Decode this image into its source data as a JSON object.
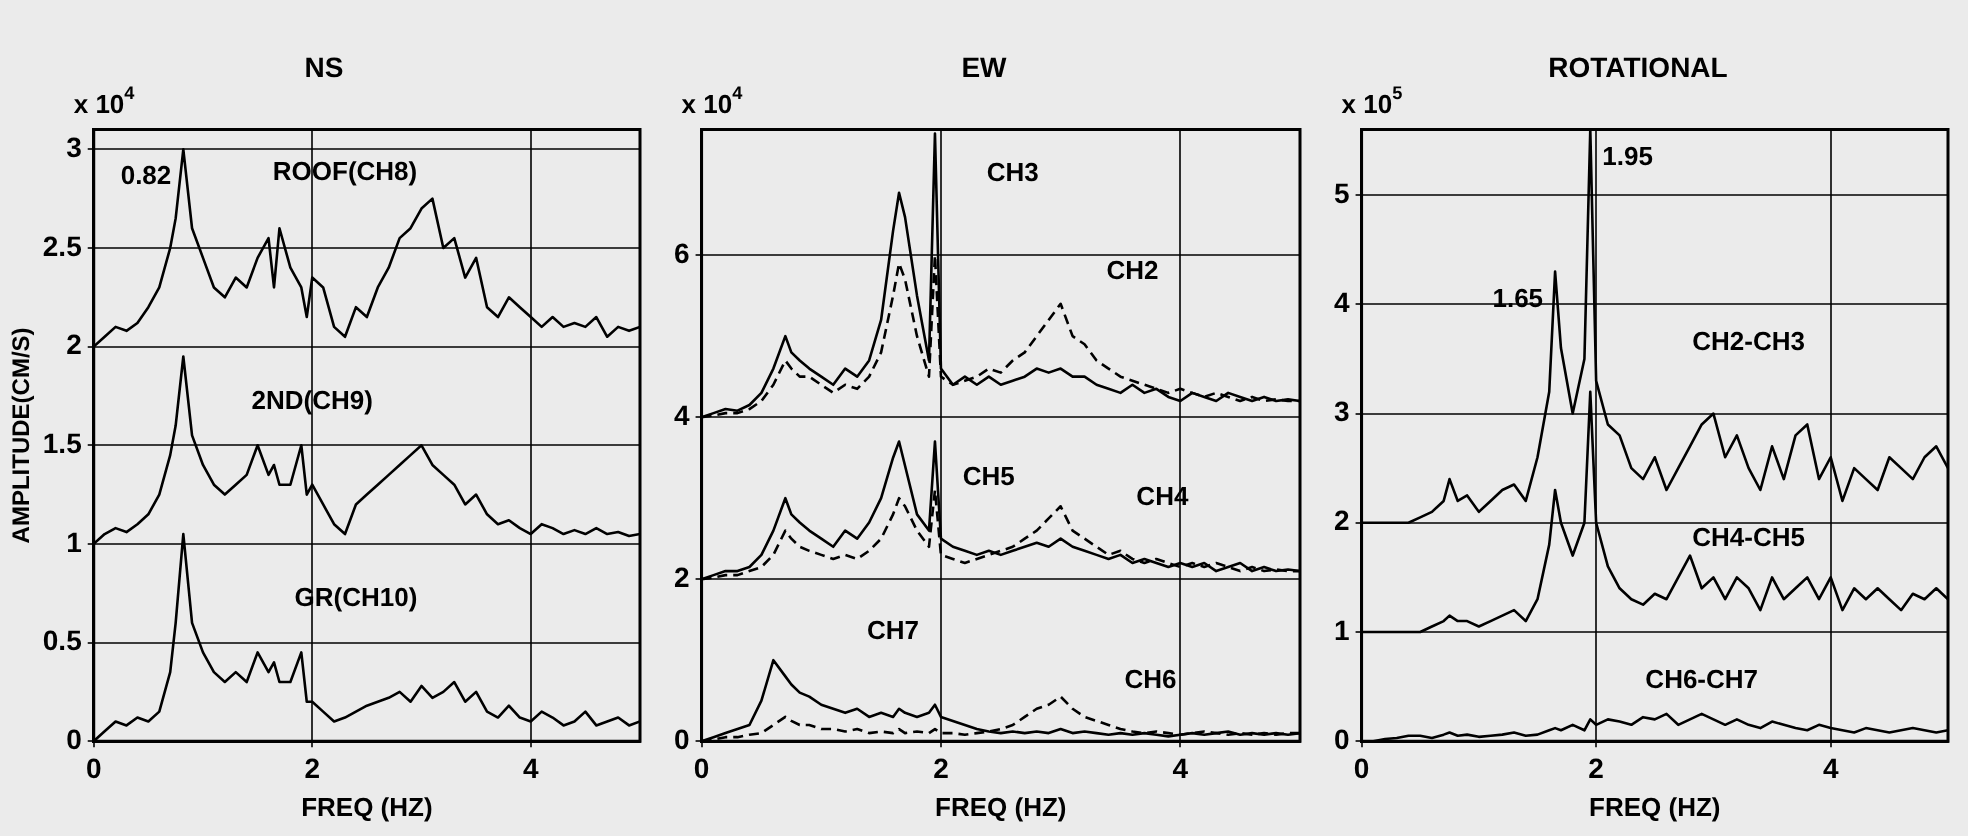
{
  "chart_data": [
    {
      "type": "line",
      "title": "NS",
      "xlabel": "FREQ (HZ)",
      "ylabel": "AMPLITUDE(CM/S)",
      "xlim": [
        0,
        5
      ],
      "xticks": [
        0,
        2,
        4
      ],
      "ylim": [
        0,
        3.1
      ],
      "yticks": [
        0,
        0.5,
        1,
        1.5,
        2,
        2.5,
        3
      ],
      "grid": true,
      "x": [
        0,
        0.1,
        0.2,
        0.3,
        0.4,
        0.5,
        0.6,
        0.7,
        0.75,
        0.82,
        0.9,
        1.0,
        1.1,
        1.2,
        1.3,
        1.4,
        1.5,
        1.6,
        1.65,
        1.7,
        1.8,
        1.9,
        1.95,
        2.0,
        2.1,
        2.2,
        2.3,
        2.4,
        2.5,
        2.6,
        2.7,
        2.8,
        2.9,
        3.0,
        3.1,
        3.2,
        3.3,
        3.4,
        3.5,
        3.6,
        3.7,
        3.8,
        3.9,
        4.0,
        4.1,
        4.2,
        4.3,
        4.4,
        4.5,
        4.6,
        4.7,
        4.8,
        4.9,
        5.0
      ],
      "series": [
        {
          "name": "ROOF(CH8)",
          "color": "#000000",
          "values": [
            2.0,
            2.05,
            2.1,
            2.08,
            2.12,
            2.2,
            2.3,
            2.5,
            2.65,
            3.0,
            2.6,
            2.45,
            2.3,
            2.25,
            2.35,
            2.3,
            2.45,
            2.55,
            2.3,
            2.6,
            2.4,
            2.3,
            2.15,
            2.35,
            2.3,
            2.1,
            2.05,
            2.2,
            2.15,
            2.3,
            2.4,
            2.55,
            2.6,
            2.7,
            2.75,
            2.5,
            2.55,
            2.35,
            2.45,
            2.2,
            2.15,
            2.25,
            2.2,
            2.15,
            2.1,
            2.15,
            2.1,
            2.12,
            2.1,
            2.15,
            2.05,
            2.1,
            2.08,
            2.1
          ]
        },
        {
          "name": "2ND(CH9)",
          "color": "#000000",
          "values": [
            1.0,
            1.05,
            1.08,
            1.06,
            1.1,
            1.15,
            1.25,
            1.45,
            1.6,
            1.95,
            1.55,
            1.4,
            1.3,
            1.25,
            1.3,
            1.35,
            1.5,
            1.35,
            1.4,
            1.3,
            1.3,
            1.5,
            1.25,
            1.3,
            1.2,
            1.1,
            1.05,
            1.2,
            1.25,
            1.3,
            1.35,
            1.4,
            1.45,
            1.5,
            1.4,
            1.35,
            1.3,
            1.2,
            1.25,
            1.15,
            1.1,
            1.12,
            1.08,
            1.05,
            1.1,
            1.08,
            1.05,
            1.07,
            1.05,
            1.08,
            1.05,
            1.06,
            1.04,
            1.05
          ]
        },
        {
          "name": "GR(CH10)",
          "color": "#000000",
          "values": [
            0.0,
            0.05,
            0.1,
            0.08,
            0.12,
            0.1,
            0.15,
            0.35,
            0.6,
            1.05,
            0.6,
            0.45,
            0.35,
            0.3,
            0.35,
            0.3,
            0.45,
            0.35,
            0.4,
            0.3,
            0.3,
            0.45,
            0.2,
            0.2,
            0.15,
            0.1,
            0.12,
            0.15,
            0.18,
            0.2,
            0.22,
            0.25,
            0.2,
            0.28,
            0.22,
            0.25,
            0.3,
            0.2,
            0.25,
            0.15,
            0.12,
            0.18,
            0.12,
            0.1,
            0.15,
            0.12,
            0.08,
            0.1,
            0.15,
            0.08,
            0.1,
            0.12,
            0.08,
            0.1
          ]
        }
      ],
      "annotations": [
        "x 10$^{4}$",
        {
          "text": "0.82",
          "x": 0.82,
          "y": 3.0
        }
      ]
    },
    {
      "type": "line",
      "title": "EW",
      "xlabel": "FREQ (HZ)",
      "xlim": [
        0,
        5
      ],
      "xticks": [
        0,
        2,
        4
      ],
      "ylim": [
        0,
        7.55
      ],
      "yticks": [
        0,
        2,
        4,
        6
      ],
      "grid": true,
      "x": [
        0,
        0.1,
        0.2,
        0.3,
        0.4,
        0.5,
        0.6,
        0.7,
        0.75,
        0.82,
        0.9,
        1.0,
        1.1,
        1.2,
        1.3,
        1.4,
        1.5,
        1.6,
        1.65,
        1.7,
        1.8,
        1.9,
        1.95,
        2.0,
        2.1,
        2.2,
        2.3,
        2.4,
        2.5,
        2.6,
        2.7,
        2.8,
        2.9,
        3.0,
        3.1,
        3.2,
        3.3,
        3.4,
        3.5,
        3.6,
        3.7,
        3.8,
        3.9,
        4.0,
        4.1,
        4.2,
        4.3,
        4.4,
        4.5,
        4.6,
        4.7,
        4.8,
        4.9,
        5.0
      ],
      "series": [
        {
          "name": "CH3",
          "color": "#000000",
          "values": [
            4.0,
            4.05,
            4.1,
            4.08,
            4.15,
            4.3,
            4.6,
            5.0,
            4.8,
            4.7,
            4.6,
            4.5,
            4.4,
            4.6,
            4.5,
            4.7,
            5.2,
            6.3,
            6.77,
            6.47,
            5.5,
            4.7,
            7.5,
            4.6,
            4.4,
            4.5,
            4.4,
            4.5,
            4.4,
            4.45,
            4.5,
            4.6,
            4.55,
            4.6,
            4.5,
            4.5,
            4.4,
            4.35,
            4.3,
            4.4,
            4.3,
            4.35,
            4.25,
            4.2,
            4.3,
            4.25,
            4.2,
            4.3,
            4.25,
            4.2,
            4.25,
            4.2,
            4.22,
            4.2
          ]
        },
        {
          "name": "CH2",
          "color": "#000000",
          "line_style": "dashed",
          "values": [
            4.0,
            4.02,
            4.05,
            4.05,
            4.1,
            4.2,
            4.4,
            4.7,
            4.6,
            4.5,
            4.5,
            4.4,
            4.3,
            4.4,
            4.35,
            4.5,
            4.8,
            5.5,
            5.9,
            5.7,
            5.0,
            4.5,
            6.0,
            4.5,
            4.4,
            4.45,
            4.5,
            4.6,
            4.55,
            4.7,
            4.8,
            5.0,
            5.2,
            5.4,
            5.0,
            4.9,
            4.7,
            4.6,
            4.5,
            4.45,
            4.4,
            4.35,
            4.3,
            4.35,
            4.3,
            4.25,
            4.3,
            4.25,
            4.2,
            4.25,
            4.2,
            4.22,
            4.2,
            4.2
          ]
        },
        {
          "name": "CH5",
          "color": "#000000",
          "values": [
            2.0,
            2.05,
            2.1,
            2.1,
            2.15,
            2.3,
            2.6,
            3.0,
            2.8,
            2.7,
            2.6,
            2.5,
            2.4,
            2.6,
            2.5,
            2.7,
            3.0,
            3.5,
            3.7,
            3.4,
            2.8,
            2.6,
            3.7,
            2.5,
            2.4,
            2.35,
            2.3,
            2.35,
            2.3,
            2.35,
            2.4,
            2.45,
            2.4,
            2.5,
            2.4,
            2.35,
            2.3,
            2.25,
            2.3,
            2.2,
            2.25,
            2.2,
            2.15,
            2.2,
            2.15,
            2.2,
            2.1,
            2.15,
            2.2,
            2.1,
            2.15,
            2.1,
            2.12,
            2.1
          ]
        },
        {
          "name": "CH4",
          "color": "#000000",
          "line_style": "dashed",
          "values": [
            2.0,
            2.02,
            2.05,
            2.05,
            2.1,
            2.15,
            2.3,
            2.6,
            2.5,
            2.4,
            2.35,
            2.3,
            2.25,
            2.3,
            2.25,
            2.35,
            2.5,
            2.8,
            3.0,
            2.9,
            2.6,
            2.4,
            3.1,
            2.3,
            2.25,
            2.2,
            2.25,
            2.3,
            2.35,
            2.4,
            2.5,
            2.6,
            2.75,
            2.9,
            2.6,
            2.5,
            2.4,
            2.3,
            2.35,
            2.25,
            2.2,
            2.25,
            2.2,
            2.15,
            2.2,
            2.15,
            2.2,
            2.15,
            2.1,
            2.15,
            2.1,
            2.12,
            2.1,
            2.1
          ]
        },
        {
          "name": "CH7",
          "color": "#000000",
          "values": [
            0.0,
            0.05,
            0.1,
            0.15,
            0.2,
            0.5,
            1.0,
            0.8,
            0.7,
            0.6,
            0.55,
            0.45,
            0.4,
            0.35,
            0.4,
            0.3,
            0.35,
            0.3,
            0.4,
            0.35,
            0.3,
            0.35,
            0.45,
            0.3,
            0.25,
            0.2,
            0.15,
            0.12,
            0.1,
            0.12,
            0.1,
            0.12,
            0.1,
            0.15,
            0.1,
            0.12,
            0.1,
            0.08,
            0.1,
            0.08,
            0.1,
            0.08,
            0.06,
            0.08,
            0.1,
            0.08,
            0.1,
            0.12,
            0.08,
            0.1,
            0.08,
            0.1,
            0.08,
            0.1
          ]
        },
        {
          "name": "CH6",
          "color": "#000000",
          "line_style": "dashed",
          "values": [
            0.0,
            0.02,
            0.05,
            0.05,
            0.08,
            0.1,
            0.2,
            0.3,
            0.25,
            0.2,
            0.2,
            0.15,
            0.15,
            0.12,
            0.15,
            0.1,
            0.12,
            0.1,
            0.15,
            0.1,
            0.12,
            0.1,
            0.15,
            0.1,
            0.1,
            0.08,
            0.1,
            0.12,
            0.15,
            0.2,
            0.3,
            0.4,
            0.45,
            0.55,
            0.4,
            0.3,
            0.25,
            0.2,
            0.15,
            0.12,
            0.1,
            0.12,
            0.1,
            0.08,
            0.1,
            0.12,
            0.1,
            0.08,
            0.1,
            0.08,
            0.1,
            0.08,
            0.1,
            0.1
          ]
        }
      ],
      "annotations": [
        "x 10$^{4}$"
      ]
    },
    {
      "type": "line",
      "title": "ROTATIONAL",
      "xlabel": "FREQ (HZ)",
      "xlim": [
        0,
        5
      ],
      "xticks": [
        0,
        2,
        4
      ],
      "ylim": [
        0,
        5.6
      ],
      "yticks": [
        0,
        1,
        2,
        3,
        4,
        5
      ],
      "grid": true,
      "x": [
        0,
        0.1,
        0.2,
        0.3,
        0.4,
        0.5,
        0.6,
        0.7,
        0.75,
        0.82,
        0.9,
        1.0,
        1.1,
        1.2,
        1.3,
        1.4,
        1.5,
        1.6,
        1.65,
        1.7,
        1.8,
        1.9,
        1.95,
        2.0,
        2.1,
        2.2,
        2.3,
        2.4,
        2.5,
        2.6,
        2.7,
        2.8,
        2.9,
        3.0,
        3.1,
        3.2,
        3.3,
        3.4,
        3.5,
        3.6,
        3.7,
        3.8,
        3.9,
        4.0,
        4.1,
        4.2,
        4.3,
        4.4,
        4.5,
        4.6,
        4.7,
        4.8,
        4.9,
        5.0
      ],
      "series": [
        {
          "name": "CH2-CH3",
          "color": "#000000",
          "values": [
            2.0,
            2.0,
            2.0,
            2.0,
            2.0,
            2.05,
            2.1,
            2.2,
            2.4,
            2.2,
            2.25,
            2.1,
            2.2,
            2.3,
            2.35,
            2.2,
            2.6,
            3.2,
            4.3,
            3.6,
            3.0,
            3.5,
            5.6,
            3.3,
            2.9,
            2.8,
            2.5,
            2.4,
            2.6,
            2.3,
            2.5,
            2.7,
            2.9,
            3.0,
            2.6,
            2.8,
            2.5,
            2.3,
            2.7,
            2.4,
            2.8,
            2.9,
            2.4,
            2.6,
            2.2,
            2.5,
            2.4,
            2.3,
            2.6,
            2.5,
            2.4,
            2.6,
            2.7,
            2.5
          ]
        },
        {
          "name": "CH4-CH5",
          "color": "#000000",
          "values": [
            1.0,
            1.0,
            1.0,
            1.0,
            1.0,
            1.0,
            1.05,
            1.1,
            1.15,
            1.1,
            1.1,
            1.05,
            1.1,
            1.15,
            1.2,
            1.1,
            1.3,
            1.8,
            2.3,
            2.0,
            1.7,
            2.0,
            3.2,
            2.0,
            1.6,
            1.4,
            1.3,
            1.25,
            1.35,
            1.3,
            1.5,
            1.7,
            1.4,
            1.5,
            1.3,
            1.5,
            1.4,
            1.2,
            1.5,
            1.3,
            1.4,
            1.5,
            1.3,
            1.5,
            1.2,
            1.4,
            1.3,
            1.4,
            1.3,
            1.2,
            1.35,
            1.3,
            1.4,
            1.3
          ]
        },
        {
          "name": "CH6-CH7",
          "color": "#000000",
          "values": [
            0.0,
            0.0,
            0.02,
            0.03,
            0.05,
            0.05,
            0.03,
            0.06,
            0.08,
            0.05,
            0.06,
            0.04,
            0.05,
            0.06,
            0.08,
            0.05,
            0.06,
            0.1,
            0.12,
            0.1,
            0.15,
            0.1,
            0.2,
            0.15,
            0.2,
            0.18,
            0.15,
            0.22,
            0.2,
            0.25,
            0.15,
            0.2,
            0.25,
            0.2,
            0.15,
            0.2,
            0.15,
            0.12,
            0.18,
            0.15,
            0.12,
            0.1,
            0.15,
            0.12,
            0.1,
            0.08,
            0.12,
            0.1,
            0.08,
            0.1,
            0.12,
            0.1,
            0.08,
            0.1
          ]
        }
      ],
      "annotations": [
        "x 10$^{5}$",
        {
          "text": "1.95",
          "x": 1.95,
          "y": 5.6
        },
        {
          "text": "1.65",
          "x": 1.65,
          "y": 4.3
        }
      ]
    }
  ]
}
